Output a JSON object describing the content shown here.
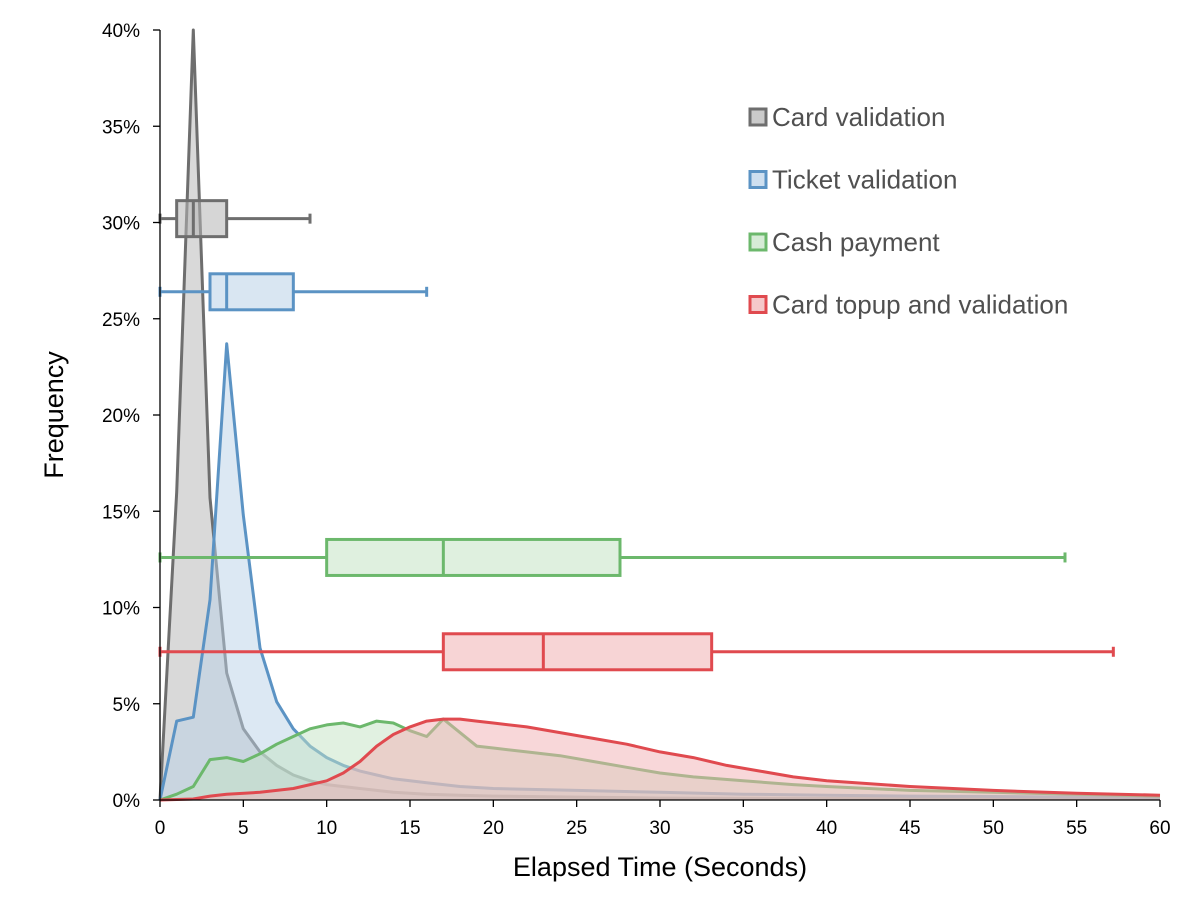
{
  "chart_data": {
    "type": "area",
    "title": "",
    "xlabel": "Elapsed Time (Seconds)",
    "ylabel": "Frequency",
    "xlim": [
      0,
      60
    ],
    "ylim": [
      0,
      0.4
    ],
    "x_ticks": [
      0,
      5,
      10,
      15,
      20,
      25,
      30,
      35,
      40,
      45,
      50,
      55,
      60
    ],
    "x_tick_labels": [
      "0",
      "5",
      "10",
      "15",
      "20",
      "25",
      "30",
      "35",
      "40",
      "45",
      "50",
      "55",
      "60"
    ],
    "y_ticks": [
      0,
      0.05,
      0.1,
      0.15,
      0.2,
      0.25,
      0.3,
      0.35,
      0.4
    ],
    "y_tick_labels": [
      "0%",
      "5%",
      "10%",
      "15%",
      "20%",
      "25%",
      "30%",
      "35%",
      "40%"
    ],
    "grid": false,
    "legend_position": "top-right",
    "series": [
      {
        "name": "Card validation",
        "color": "#6e6e6e",
        "fill": "#b4b4b4",
        "x": [
          0,
          1,
          2,
          3,
          4,
          5,
          6,
          7,
          8,
          9,
          10,
          12,
          14,
          16,
          18,
          20,
          25,
          30,
          40,
          50,
          60
        ],
        "values": [
          0,
          0.16,
          0.4,
          0.157,
          0.066,
          0.037,
          0.025,
          0.018,
          0.013,
          0.01,
          0.008,
          0.006,
          0.004,
          0.003,
          0.0025,
          0.002,
          0.0015,
          0.001,
          0.0008,
          0.0006,
          0.0005
        ],
        "box": {
          "min": 0,
          "q1": 1,
          "median": 2,
          "q3": 4,
          "max": 9,
          "y": 0.302
        }
      },
      {
        "name": "Ticket validation",
        "color": "#5b93c4",
        "fill": "#b9d1e8",
        "x": [
          0,
          1,
          2,
          3,
          4,
          5,
          6,
          7,
          8,
          9,
          10,
          11,
          12,
          13,
          14,
          15,
          16,
          18,
          20,
          25,
          30,
          35,
          40,
          45,
          50,
          55,
          60
        ],
        "values": [
          0,
          0.041,
          0.043,
          0.104,
          0.237,
          0.148,
          0.079,
          0.051,
          0.037,
          0.028,
          0.022,
          0.018,
          0.015,
          0.013,
          0.011,
          0.01,
          0.009,
          0.007,
          0.006,
          0.005,
          0.004,
          0.003,
          0.0025,
          0.002,
          0.0018,
          0.0015,
          0.0012
        ],
        "box": {
          "min": 0,
          "q1": 3,
          "median": 4,
          "q3": 8,
          "max": 16,
          "y": 0.264
        }
      },
      {
        "name": "Cash payment",
        "color": "#6cb86c",
        "fill": "#c4e3c4",
        "x": [
          0,
          1,
          2,
          3,
          4,
          5,
          6,
          7,
          8,
          9,
          10,
          11,
          12,
          13,
          14,
          15,
          16,
          17,
          18,
          19,
          20,
          22,
          24,
          26,
          28,
          30,
          32,
          35,
          38,
          40,
          45,
          50,
          55,
          60
        ],
        "values": [
          0,
          0.003,
          0.007,
          0.021,
          0.022,
          0.02,
          0.024,
          0.029,
          0.033,
          0.037,
          0.039,
          0.04,
          0.038,
          0.041,
          0.04,
          0.036,
          0.033,
          0.042,
          0.035,
          0.028,
          0.027,
          0.025,
          0.023,
          0.02,
          0.017,
          0.014,
          0.012,
          0.01,
          0.008,
          0.007,
          0.005,
          0.004,
          0.003,
          0.002
        ],
        "box": {
          "min": 0,
          "q1": 10,
          "median": 17,
          "q3": 27.6,
          "max": 54.3,
          "y": 0.126
        }
      },
      {
        "name": "Card topup and validation",
        "color": "#e04a4f",
        "fill": "#f1b0b3",
        "x": [
          0,
          2,
          3,
          4,
          6,
          8,
          10,
          11,
          12,
          13,
          14,
          15,
          16,
          17,
          18,
          19,
          20,
          22,
          24,
          26,
          28,
          30,
          32,
          34,
          36,
          38,
          40,
          45,
          50,
          55,
          60
        ],
        "values": [
          0,
          0.0005,
          0.002,
          0.003,
          0.004,
          0.006,
          0.01,
          0.014,
          0.02,
          0.028,
          0.034,
          0.038,
          0.041,
          0.042,
          0.042,
          0.041,
          0.04,
          0.038,
          0.035,
          0.032,
          0.029,
          0.025,
          0.022,
          0.018,
          0.015,
          0.012,
          0.01,
          0.007,
          0.005,
          0.0035,
          0.0025
        ],
        "box": {
          "min": 0,
          "q1": 17,
          "median": 23,
          "q3": 33.1,
          "max": 57.2,
          "y": 0.077
        }
      }
    ]
  }
}
